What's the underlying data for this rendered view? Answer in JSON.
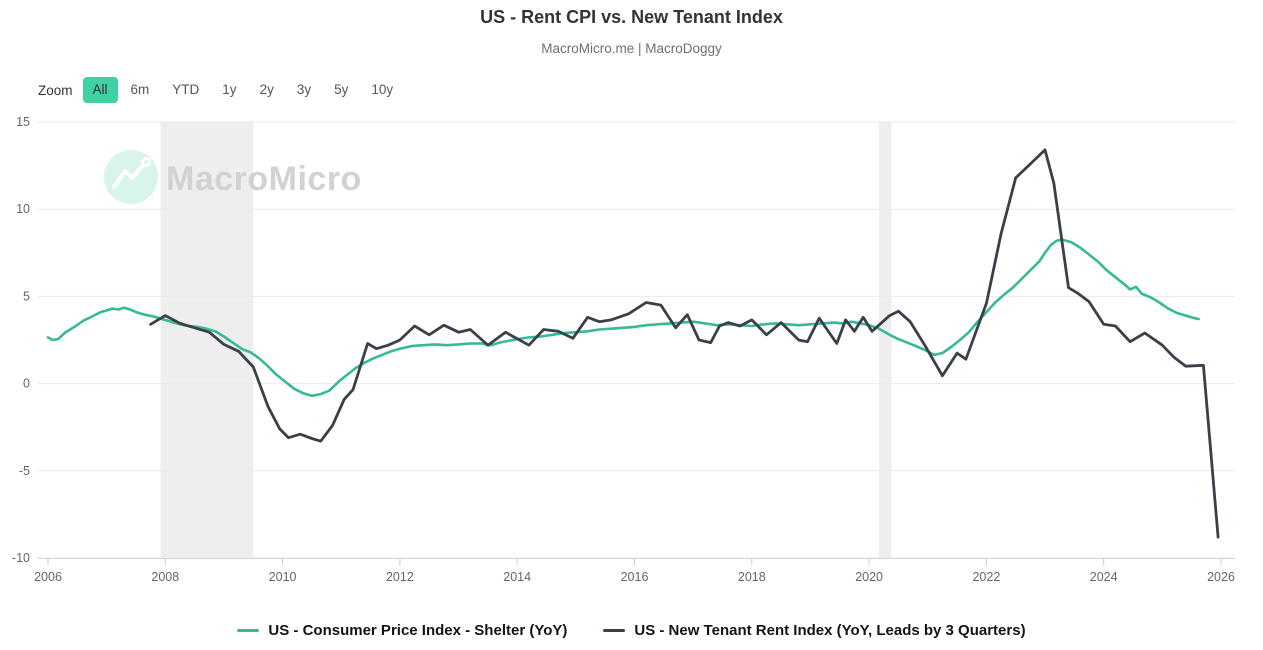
{
  "header": {
    "title": "US - Rent CPI vs. New Tenant Index",
    "subtitle": "MacroMicro.me | MacroDoggy"
  },
  "toolbar": {
    "label": "Zoom",
    "ranges": [
      "All",
      "6m",
      "YTD",
      "1y",
      "2y",
      "3y",
      "5y",
      "10y"
    ],
    "active": "All"
  },
  "watermark": {
    "text": "MacroMicro",
    "icon": "macromicro-zigzag-logo",
    "circle_color": "#d9f4ec",
    "text_color": "#d2d2d2"
  },
  "chart_data": {
    "type": "line",
    "title": "US - Rent CPI vs. New Tenant Index",
    "subtitle": "MacroMicro.me | MacroDoggy",
    "grid": true,
    "legend_position": "bottom",
    "x_axis": {
      "ticks": [
        2006,
        2008,
        2010,
        2012,
        2014,
        2016,
        2018,
        2020,
        2022,
        2024,
        2026
      ]
    },
    "y_axis": {
      "min": -10,
      "max": 15,
      "ticks": [
        -10,
        -5,
        0,
        5,
        10,
        15
      ]
    },
    "recession_bands": [
      {
        "from": 2007.92,
        "to": 2009.5
      },
      {
        "from": 2020.17,
        "to": 2020.38
      }
    ],
    "colors": {
      "band": "#eeeeee",
      "grid": "#e9e9e9",
      "axis": "#d6d6d6",
      "tick": "#cccccc",
      "label": "#666666",
      "accent": "#3fd0a4"
    },
    "series": [
      {
        "id": "cpi-shelter",
        "name": "US - Consumer Price Index - Shelter (YoY)",
        "color": "#36ba96",
        "width": 2.6,
        "points": [
          [
            2006.0,
            2.65
          ],
          [
            2006.08,
            2.5
          ],
          [
            2006.17,
            2.55
          ],
          [
            2006.3,
            2.95
          ],
          [
            2006.45,
            3.25
          ],
          [
            2006.6,
            3.6
          ],
          [
            2006.75,
            3.85
          ],
          [
            2006.9,
            4.1
          ],
          [
            2007.0,
            4.2
          ],
          [
            2007.1,
            4.3
          ],
          [
            2007.2,
            4.25
          ],
          [
            2007.3,
            4.35
          ],
          [
            2007.4,
            4.25
          ],
          [
            2007.5,
            4.1
          ],
          [
            2007.65,
            3.95
          ],
          [
            2007.8,
            3.85
          ],
          [
            2007.95,
            3.7
          ],
          [
            2008.1,
            3.55
          ],
          [
            2008.25,
            3.4
          ],
          [
            2008.4,
            3.3
          ],
          [
            2008.55,
            3.25
          ],
          [
            2008.7,
            3.15
          ],
          [
            2008.85,
            3.0
          ],
          [
            2009.0,
            2.7
          ],
          [
            2009.15,
            2.35
          ],
          [
            2009.3,
            2.0
          ],
          [
            2009.45,
            1.8
          ],
          [
            2009.6,
            1.45
          ],
          [
            2009.75,
            1.0
          ],
          [
            2009.9,
            0.5
          ],
          [
            2010.05,
            0.1
          ],
          [
            2010.2,
            -0.3
          ],
          [
            2010.35,
            -0.55
          ],
          [
            2010.5,
            -0.7
          ],
          [
            2010.65,
            -0.6
          ],
          [
            2010.8,
            -0.4
          ],
          [
            2010.95,
            0.1
          ],
          [
            2011.1,
            0.5
          ],
          [
            2011.25,
            0.9
          ],
          [
            2011.4,
            1.2
          ],
          [
            2011.55,
            1.45
          ],
          [
            2011.7,
            1.65
          ],
          [
            2011.85,
            1.85
          ],
          [
            2012.0,
            2.0
          ],
          [
            2012.2,
            2.15
          ],
          [
            2012.4,
            2.2
          ],
          [
            2012.6,
            2.25
          ],
          [
            2012.8,
            2.2
          ],
          [
            2013.0,
            2.25
          ],
          [
            2013.2,
            2.3
          ],
          [
            2013.4,
            2.3
          ],
          [
            2013.55,
            2.2
          ],
          [
            2013.7,
            2.35
          ],
          [
            2013.85,
            2.45
          ],
          [
            2014.0,
            2.55
          ],
          [
            2014.2,
            2.65
          ],
          [
            2014.4,
            2.7
          ],
          [
            2014.6,
            2.8
          ],
          [
            2014.8,
            2.9
          ],
          [
            2015.0,
            2.95
          ],
          [
            2015.2,
            3.0
          ],
          [
            2015.4,
            3.1
          ],
          [
            2015.6,
            3.15
          ],
          [
            2015.8,
            3.2
          ],
          [
            2016.0,
            3.25
          ],
          [
            2016.2,
            3.35
          ],
          [
            2016.4,
            3.4
          ],
          [
            2016.6,
            3.45
          ],
          [
            2016.8,
            3.5
          ],
          [
            2017.0,
            3.55
          ],
          [
            2017.2,
            3.45
          ],
          [
            2017.4,
            3.35
          ],
          [
            2017.6,
            3.4
          ],
          [
            2017.8,
            3.35
          ],
          [
            2018.0,
            3.3
          ],
          [
            2018.2,
            3.4
          ],
          [
            2018.4,
            3.45
          ],
          [
            2018.6,
            3.4
          ],
          [
            2018.8,
            3.35
          ],
          [
            2019.0,
            3.4
          ],
          [
            2019.2,
            3.45
          ],
          [
            2019.4,
            3.5
          ],
          [
            2019.55,
            3.45
          ],
          [
            2019.7,
            3.55
          ],
          [
            2019.85,
            3.45
          ],
          [
            2020.0,
            3.35
          ],
          [
            2020.17,
            3.15
          ],
          [
            2020.35,
            2.8
          ],
          [
            2020.5,
            2.55
          ],
          [
            2020.65,
            2.35
          ],
          [
            2020.8,
            2.15
          ],
          [
            2021.0,
            1.85
          ],
          [
            2021.1,
            1.65
          ],
          [
            2021.25,
            1.75
          ],
          [
            2021.4,
            2.1
          ],
          [
            2021.55,
            2.5
          ],
          [
            2021.7,
            2.95
          ],
          [
            2021.85,
            3.55
          ],
          [
            2022.0,
            4.1
          ],
          [
            2022.15,
            4.65
          ],
          [
            2022.3,
            5.1
          ],
          [
            2022.45,
            5.5
          ],
          [
            2022.6,
            6.0
          ],
          [
            2022.75,
            6.5
          ],
          [
            2022.9,
            7.0
          ],
          [
            2023.0,
            7.5
          ],
          [
            2023.1,
            7.95
          ],
          [
            2023.2,
            8.2
          ],
          [
            2023.3,
            8.25
          ],
          [
            2023.45,
            8.1
          ],
          [
            2023.6,
            7.8
          ],
          [
            2023.75,
            7.4
          ],
          [
            2023.9,
            7.0
          ],
          [
            2024.05,
            6.5
          ],
          [
            2024.2,
            6.1
          ],
          [
            2024.35,
            5.7
          ],
          [
            2024.45,
            5.4
          ],
          [
            2024.55,
            5.55
          ],
          [
            2024.65,
            5.15
          ],
          [
            2024.8,
            4.95
          ],
          [
            2024.95,
            4.65
          ],
          [
            2025.1,
            4.3
          ],
          [
            2025.25,
            4.05
          ],
          [
            2025.4,
            3.9
          ],
          [
            2025.55,
            3.75
          ],
          [
            2025.62,
            3.7
          ]
        ]
      },
      {
        "id": "new-tenant",
        "name": "US - New Tenant Rent Index (YoY, Leads by 3 Quarters)",
        "color": "#3a3f4a",
        "width": 2.8,
        "points": [
          [
            2007.75,
            3.4
          ],
          [
            2008.0,
            3.9
          ],
          [
            2008.25,
            3.45
          ],
          [
            2008.5,
            3.2
          ],
          [
            2008.75,
            2.95
          ],
          [
            2009.0,
            2.25
          ],
          [
            2009.25,
            1.85
          ],
          [
            2009.5,
            0.95
          ],
          [
            2009.75,
            -1.3
          ],
          [
            2009.95,
            -2.6
          ],
          [
            2010.1,
            -3.1
          ],
          [
            2010.3,
            -2.9
          ],
          [
            2010.5,
            -3.15
          ],
          [
            2010.65,
            -3.3
          ],
          [
            2010.85,
            -2.4
          ],
          [
            2011.05,
            -0.9
          ],
          [
            2011.2,
            -0.35
          ],
          [
            2011.45,
            2.3
          ],
          [
            2011.6,
            2.0
          ],
          [
            2011.8,
            2.2
          ],
          [
            2012.0,
            2.5
          ],
          [
            2012.25,
            3.3
          ],
          [
            2012.5,
            2.8
          ],
          [
            2012.75,
            3.35
          ],
          [
            2013.0,
            2.95
          ],
          [
            2013.2,
            3.1
          ],
          [
            2013.5,
            2.2
          ],
          [
            2013.8,
            2.95
          ],
          [
            2014.2,
            2.2
          ],
          [
            2014.45,
            3.1
          ],
          [
            2014.7,
            3.0
          ],
          [
            2014.95,
            2.6
          ],
          [
            2015.2,
            3.8
          ],
          [
            2015.4,
            3.55
          ],
          [
            2015.6,
            3.65
          ],
          [
            2015.9,
            4.0
          ],
          [
            2016.2,
            4.65
          ],
          [
            2016.45,
            4.5
          ],
          [
            2016.7,
            3.2
          ],
          [
            2016.9,
            3.95
          ],
          [
            2017.1,
            2.5
          ],
          [
            2017.3,
            2.35
          ],
          [
            2017.45,
            3.3
          ],
          [
            2017.6,
            3.5
          ],
          [
            2017.8,
            3.3
          ],
          [
            2018.0,
            3.65
          ],
          [
            2018.25,
            2.8
          ],
          [
            2018.5,
            3.5
          ],
          [
            2018.8,
            2.5
          ],
          [
            2018.95,
            2.4
          ],
          [
            2019.15,
            3.75
          ],
          [
            2019.45,
            2.3
          ],
          [
            2019.6,
            3.65
          ],
          [
            2019.75,
            3.0
          ],
          [
            2019.9,
            3.8
          ],
          [
            2020.05,
            3.0
          ],
          [
            2020.35,
            3.9
          ],
          [
            2020.5,
            4.15
          ],
          [
            2020.7,
            3.55
          ],
          [
            2020.95,
            2.2
          ],
          [
            2021.25,
            0.45
          ],
          [
            2021.5,
            1.75
          ],
          [
            2021.65,
            1.4
          ],
          [
            2022.0,
            4.6
          ],
          [
            2022.25,
            8.6
          ],
          [
            2022.5,
            11.8
          ],
          [
            2022.75,
            12.6
          ],
          [
            2023.0,
            13.4
          ],
          [
            2023.15,
            11.5
          ],
          [
            2023.4,
            5.5
          ],
          [
            2023.55,
            5.2
          ],
          [
            2023.75,
            4.7
          ],
          [
            2024.0,
            3.4
          ],
          [
            2024.2,
            3.3
          ],
          [
            2024.45,
            2.4
          ],
          [
            2024.7,
            2.9
          ],
          [
            2025.0,
            2.2
          ],
          [
            2025.2,
            1.5
          ],
          [
            2025.4,
            1.0
          ],
          [
            2025.7,
            1.05
          ],
          [
            2025.95,
            -8.8
          ]
        ]
      }
    ]
  }
}
